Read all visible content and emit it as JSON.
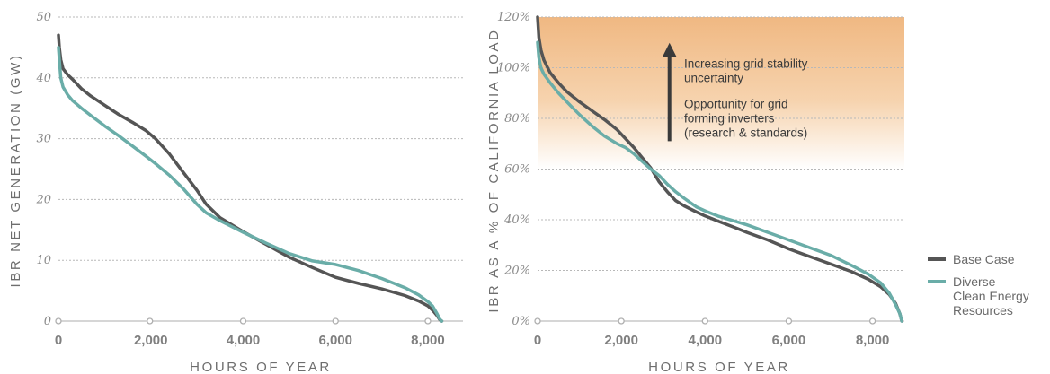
{
  "colors": {
    "base": "#555555",
    "diverse": "#6aada8",
    "grid": "#b8b8b8",
    "axis": "#c8c8c8",
    "band_top": "#f0b882",
    "band_bottom": "#ffffff"
  },
  "legend": {
    "items": [
      {
        "lines": [
          "Base Case"
        ],
        "color": "#555555"
      },
      {
        "lines": [
          "Diverse",
          "Clean Energy",
          "Resources"
        ],
        "color": "#6aada8"
      }
    ]
  },
  "chart_data": [
    {
      "type": "line",
      "xlabel": "HOURS OF YEAR",
      "ylabel": "IBR NET GENERATION (GW)",
      "xlim": [
        0,
        8760
      ],
      "ylim": [
        0,
        50
      ],
      "xticks": [
        0,
        2000,
        4000,
        6000,
        8000
      ],
      "xtick_labels": [
        "0",
        "2,000",
        "4,000",
        "6,000",
        "8,000"
      ],
      "yticks": [
        0,
        10,
        20,
        30,
        40,
        50
      ],
      "ytick_labels": [
        "0",
        "10",
        "20",
        "30",
        "40",
        "50"
      ],
      "x_markers": [
        0,
        1980,
        4000,
        6000,
        8000
      ],
      "series": [
        {
          "name": "Base Case",
          "color_key": "base",
          "x": [
            0,
            20,
            50,
            100,
            200,
            300,
            500,
            700,
            1000,
            1300,
            1600,
            1900,
            2100,
            2400,
            2700,
            3000,
            3200,
            3500,
            4000,
            4500,
            5000,
            5500,
            6000,
            6500,
            7000,
            7500,
            7800,
            8000,
            8100,
            8200,
            8260,
            8300
          ],
          "y": [
            47,
            45,
            43,
            41.5,
            40.5,
            39.8,
            38.2,
            37,
            35.5,
            34,
            32.7,
            31.3,
            30,
            27.5,
            24.5,
            21.5,
            19.2,
            17,
            14.7,
            12.6,
            10.5,
            8.8,
            7.2,
            6.2,
            5.3,
            4.2,
            3.3,
            2.5,
            1.8,
            0.9,
            0.2,
            0
          ]
        },
        {
          "name": "Diverse Clean Energy Resources",
          "color_key": "diverse",
          "x": [
            0,
            20,
            50,
            100,
            200,
            300,
            500,
            700,
            1000,
            1300,
            1600,
            1900,
            2100,
            2400,
            2700,
            3000,
            3200,
            3500,
            4000,
            4500,
            5000,
            5500,
            6000,
            6500,
            7000,
            7500,
            7800,
            8000,
            8100,
            8200,
            8260,
            8300
          ],
          "y": [
            45,
            43,
            40,
            38.5,
            37.2,
            36.3,
            35,
            33.8,
            32.1,
            30.5,
            28.8,
            27.1,
            25.9,
            24,
            21.8,
            19.2,
            17.8,
            16.5,
            14.6,
            12.8,
            11.1,
            9.9,
            9.3,
            8.3,
            7,
            5.5,
            4.3,
            3.2,
            2.5,
            1.2,
            0.3,
            0
          ]
        }
      ]
    },
    {
      "type": "line",
      "xlabel": "HOURS OF YEAR",
      "ylabel": "IBR AS A % OF CALIFORNIA LOAD",
      "xlim": [
        0,
        8760
      ],
      "ylim": [
        0,
        120
      ],
      "xticks": [
        0,
        2000,
        4000,
        6000,
        8000
      ],
      "xtick_labels": [
        "0",
        "2,000",
        "4,000",
        "6,000",
        "8,000"
      ],
      "yticks": [
        0,
        20,
        40,
        60,
        80,
        100,
        120
      ],
      "ytick_labels": [
        "0%",
        "20%",
        "40%",
        "60%",
        "80%",
        "100%",
        "120%"
      ],
      "x_markers": [
        0,
        2000,
        4000,
        6000,
        8000
      ],
      "shaded_band": {
        "from": 60,
        "to": 120
      },
      "annotations": {
        "arrow": {
          "x": 3150,
          "y_from": 71,
          "y_to": 107
        },
        "text_x": 3500,
        "blocks": [
          {
            "y_top": 105,
            "lines": [
              "Increasing grid stability",
              "uncertainty"
            ]
          },
          {
            "y_top": 89,
            "lines": [
              "Opportunity for grid",
              "forming inverters",
              "(research & standards)"
            ]
          }
        ]
      },
      "series": [
        {
          "name": "Base Case",
          "color_key": "base",
          "x": [
            0,
            30,
            80,
            150,
            300,
            500,
            700,
            1000,
            1300,
            1600,
            1900,
            2100,
            2300,
            2500,
            2700,
            2900,
            3100,
            3300,
            3500,
            3800,
            4000,
            4300,
            4700,
            5000,
            5500,
            6000,
            6500,
            7000,
            7500,
            7900,
            8200,
            8400,
            8550,
            8650,
            8700
          ],
          "y": [
            120,
            112,
            107,
            103,
            98,
            94,
            90.5,
            86.5,
            83,
            79.5,
            75.5,
            72,
            68.5,
            64.5,
            60.5,
            55,
            51,
            47.5,
            45.5,
            43,
            41.5,
            39.5,
            37,
            35,
            32,
            28.5,
            25.5,
            22.5,
            19.5,
            16.5,
            13.5,
            10.5,
            7,
            3,
            0
          ]
        },
        {
          "name": "Diverse Clean Energy Resources",
          "color_key": "diverse",
          "x": [
            0,
            30,
            80,
            150,
            300,
            500,
            700,
            1000,
            1300,
            1600,
            1900,
            2100,
            2300,
            2500,
            2700,
            2900,
            3100,
            3300,
            3500,
            3800,
            4000,
            4300,
            4700,
            5000,
            5500,
            6000,
            6500,
            7000,
            7500,
            7900,
            8200,
            8400,
            8550,
            8650,
            8700
          ],
          "y": [
            110,
            104,
            100,
            97.5,
            94,
            90,
            86.5,
            81.5,
            77,
            73,
            70,
            68.5,
            66,
            63,
            60,
            57.5,
            54,
            51,
            48.5,
            45,
            43.5,
            41.5,
            39.5,
            38,
            35,
            32,
            29,
            26,
            22,
            18.5,
            15,
            11,
            6.5,
            3,
            0
          ]
        }
      ]
    }
  ]
}
